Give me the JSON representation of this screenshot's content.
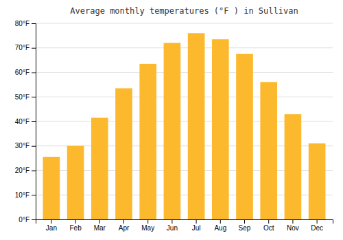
{
  "chart_data": {
    "type": "bar",
    "title": "Average monthly temperatures (°F ) in Sullivan",
    "categories": [
      "Jan",
      "Feb",
      "Mar",
      "Apr",
      "May",
      "Jun",
      "Jul",
      "Aug",
      "Sep",
      "Oct",
      "Nov",
      "Dec"
    ],
    "values": [
      25.5,
      30.0,
      41.5,
      53.5,
      63.5,
      72.0,
      76.0,
      73.5,
      67.5,
      56.0,
      43.0,
      31.0
    ],
    "color": "#FDB92E",
    "ylim": [
      0,
      80
    ],
    "yticks": [
      {
        "value": 0,
        "label": "0°F"
      },
      {
        "value": 10,
        "label": "10°F"
      },
      {
        "value": 20,
        "label": "20°F"
      },
      {
        "value": 30,
        "label": "30°F"
      },
      {
        "value": 40,
        "label": "40°F"
      },
      {
        "value": 50,
        "label": "50°F"
      },
      {
        "value": 60,
        "label": "60°F"
      },
      {
        "value": 70,
        "label": "70°F"
      },
      {
        "value": 80,
        "label": "80°F"
      }
    ],
    "grid": true
  }
}
